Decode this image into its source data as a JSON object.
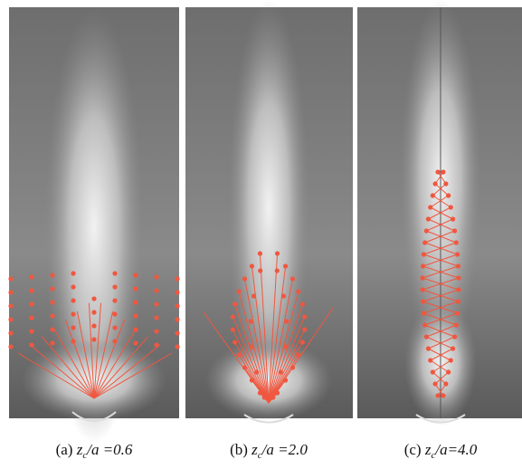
{
  "panels": [
    {
      "prefix": "(a) ",
      "var": "z",
      "sub": "c",
      "rest": "/a =0.6"
    },
    {
      "prefix": "(b) ",
      "var": "z",
      "sub": "c",
      "rest": "/a =2.0"
    },
    {
      "prefix": "(c) ",
      "var": "z",
      "sub": "c",
      "rest": "/a=4.0"
    }
  ]
}
